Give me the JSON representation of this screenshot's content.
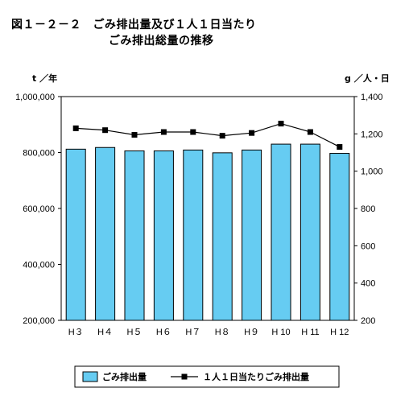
{
  "title_line1": "図１－２－２　ごみ排出量及び１人１日当たり",
  "title_line2": "ごみ排出総量の推移",
  "colors": {
    "bar_fill": "#66ccf2",
    "bar_stroke": "#000000",
    "line": "#000000"
  },
  "chart_data": {
    "type": "bar",
    "categories": [
      "H３",
      "H４",
      "H５",
      "H６",
      "H７",
      "H８",
      "H９",
      "H 10",
      "H 11",
      "H 12"
    ],
    "series": [
      {
        "name": "ごみ排出量",
        "type": "bar",
        "axis": "left",
        "values": [
          812000,
          818000,
          806000,
          806000,
          809000,
          799000,
          809000,
          830000,
          830000,
          797000
        ]
      },
      {
        "name": "１人１日当たりごみ排出量",
        "type": "line",
        "axis": "right",
        "marker": "square",
        "values": [
          1230,
          1220,
          1195,
          1210,
          1210,
          1190,
          1205,
          1255,
          1210,
          1130
        ]
      }
    ],
    "left_axis": {
      "unit": "t ／年",
      "ylim": [
        200000,
        1000000
      ],
      "ticks": [
        200000,
        400000,
        600000,
        800000,
        1000000
      ],
      "tick_labels": [
        "200,000",
        "400,000",
        "600,000",
        "800,000",
        "1,000,000"
      ]
    },
    "right_axis": {
      "unit": "g ／人・日",
      "ylim": [
        200,
        1400
      ],
      "ticks": [
        200,
        400,
        600,
        800,
        1000,
        1200,
        1400
      ],
      "tick_labels": [
        "200",
        "400",
        "600",
        "800",
        "1,000",
        "1,200",
        "1,400"
      ]
    },
    "grid": false,
    "legend_position": "bottom"
  }
}
